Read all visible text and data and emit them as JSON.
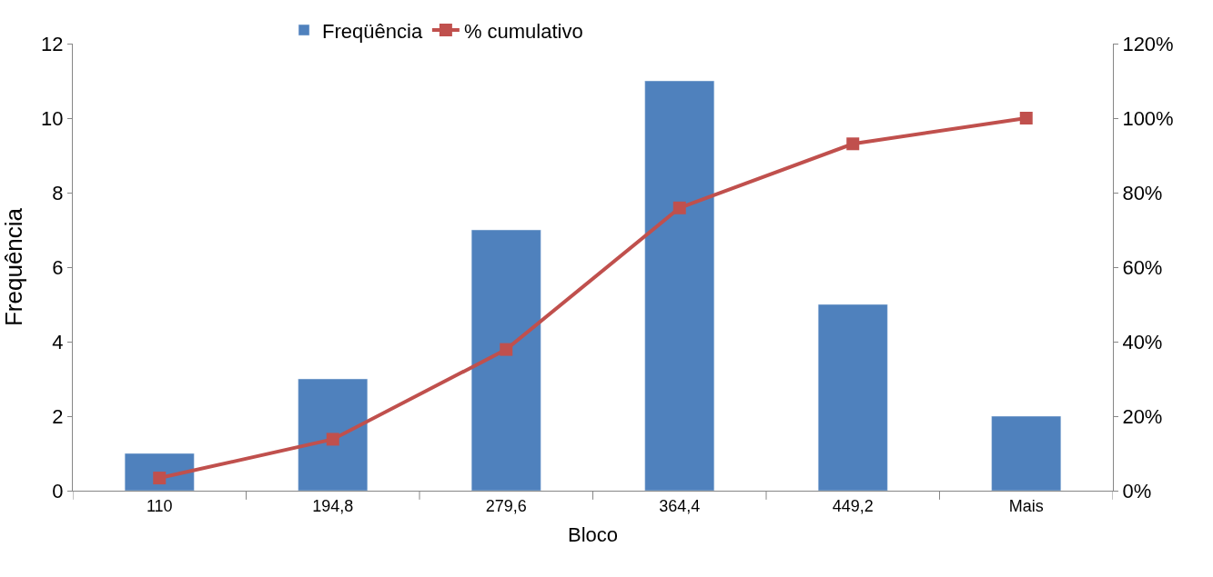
{
  "chart_data": {
    "type": "bar",
    "xlabel": "Bloco",
    "ylabel": "Frequência",
    "categories": [
      "110",
      "194,8",
      "279,6",
      "364,4",
      "449,2",
      "Mais"
    ],
    "series": [
      {
        "name": "Freqüência",
        "color": "#4f81bd",
        "values": [
          1,
          3,
          7,
          11,
          5,
          2
        ]
      },
      {
        "name": "% cumulativo",
        "type": "line",
        "axis": "y2",
        "color": "#c0504d",
        "marker": "square",
        "line_style": "solid",
        "values": [
          3.4,
          13.8,
          37.9,
          75.9,
          93.1,
          100
        ]
      }
    ],
    "ylim": [
      0,
      12
    ],
    "yticks": [
      0,
      2,
      4,
      6,
      8,
      10,
      12
    ],
    "y2lim": [
      0,
      120
    ],
    "y2ticks": [
      {
        "value": 0,
        "label": "0%"
      },
      {
        "value": 20,
        "label": "20%"
      },
      {
        "value": 40,
        "label": "40%"
      },
      {
        "value": 60,
        "label": "60%"
      },
      {
        "value": 80,
        "label": "80%"
      },
      {
        "value": 100,
        "label": "100%"
      },
      {
        "value": 120,
        "label": "120%"
      }
    ],
    "legend": "top"
  }
}
